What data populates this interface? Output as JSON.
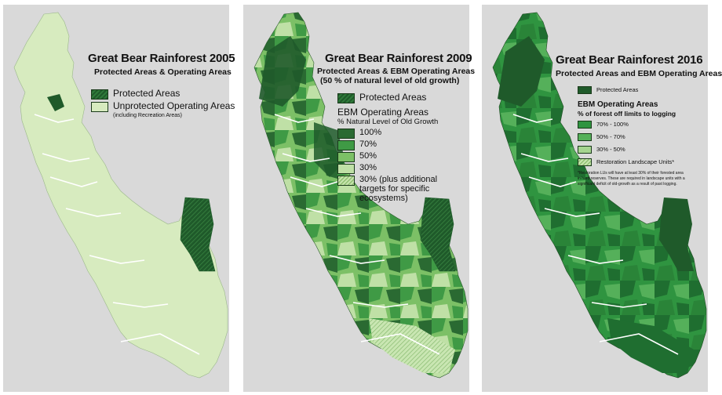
{
  "panels": {
    "p2005": {
      "title": "Great Bear Rainforest 2005",
      "subtitle": "Protected Areas & Operating Areas",
      "legend": {
        "protected": "Protected Areas",
        "unprotected": "Unprotected Operating Areas",
        "unprotected_note": "(including Recreation Areas)"
      }
    },
    "p2009": {
      "title": "Great Bear Rainforest 2009",
      "subtitle_line1": "Protected Areas & EBM Operating Areas",
      "subtitle_line2": "(50 % of natural level of old growth)",
      "legend": {
        "protected": "Protected Areas",
        "heading1": "EBM Operating Areas",
        "heading2": "% Natural Level of Old Growth",
        "items": [
          "100%",
          "70%",
          "50%",
          "30%"
        ],
        "last_item_line1": "30% (plus additional",
        "last_item_line2": "targets for specific",
        "last_item_line3": "ecosystems)"
      }
    },
    "p2016": {
      "title": "Great Bear Rainforest 2016",
      "subtitle": "Protected Areas and EBM Operating Areas",
      "legend": {
        "protected": "Protected Areas",
        "heading1": "EBM Operating Areas",
        "heading2": "% of forest off limits to logging",
        "items": [
          "70% - 100%",
          "50% - 70%",
          "30% - 50%",
          "Restoration Landscape Units*"
        ],
        "footnote_line1": "*Restoration LUs will have at least 30% of their  forested area",
        "footnote_line2": "in hard reserves. These are required in landscape units with a",
        "footnote_line3": "significant deficit of old-growth as a result of past logging."
      }
    }
  },
  "colors": {
    "background": "#d9d9d9",
    "water": "#ffffff",
    "protected": "#1f5a2a",
    "unprotected": "#d7ebbf",
    "ebm_100": "#2a6a32",
    "ebm_70": "#3f9a45",
    "ebm_50": "#7cc066",
    "ebm_30": "#bfe0a6",
    "g16_70_100": "#2f9440",
    "g16_50_70": "#55b05a",
    "g16_30_50": "#a5d58f"
  }
}
